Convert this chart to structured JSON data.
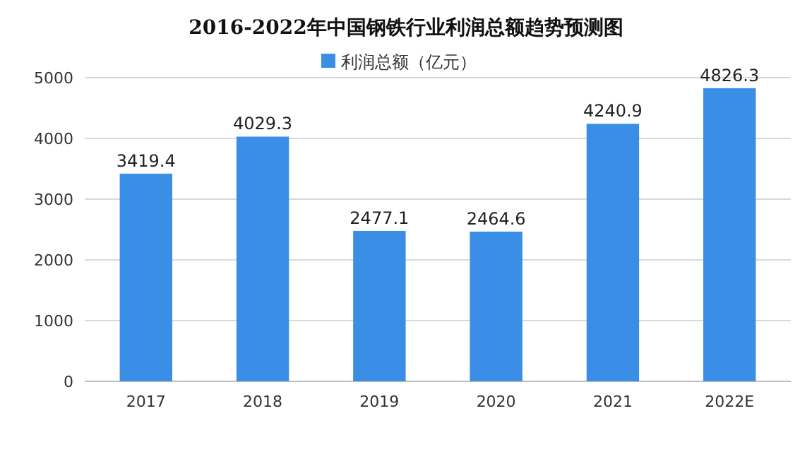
{
  "chart_data": {
    "type": "bar",
    "title": "2016-2022年中国钢铁行业利润总额趋势预测图",
    "categories": [
      "2017",
      "2018",
      "2019",
      "2020",
      "2021",
      "2022E"
    ],
    "series": [
      {
        "name": "利润总额（亿元）",
        "color": "#3a8ee6",
        "values": [
          3419.4,
          4029.3,
          2477.1,
          2464.6,
          4240.9,
          4826.3
        ]
      }
    ],
    "ylim": [
      0,
      5000
    ],
    "yticks": [
      0,
      1000,
      2000,
      3000,
      4000,
      5000
    ],
    "grid": "y",
    "legend": "top",
    "data_labels": true
  }
}
